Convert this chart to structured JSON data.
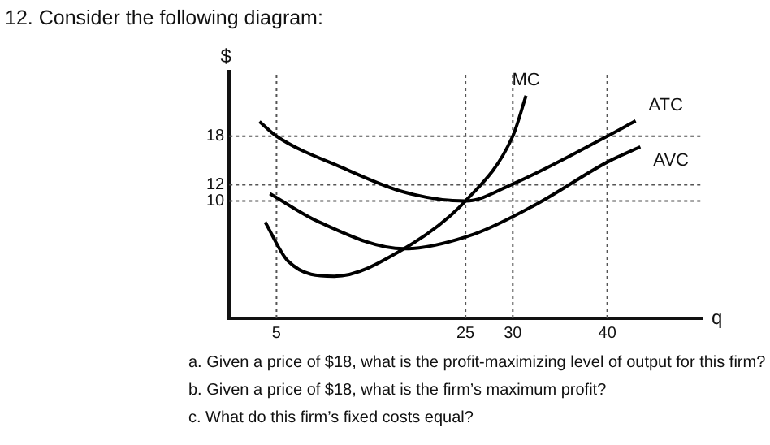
{
  "chart_data": {
    "type": "line",
    "title": "12. Consider the following diagram:",
    "xlabel": "q",
    "ylabel": "$",
    "xlim": [
      0,
      50
    ],
    "ylim": [
      -4.5,
      26
    ],
    "xticks": [
      5,
      25,
      30,
      40
    ],
    "yticks": [
      10,
      12,
      18
    ],
    "grid": false,
    "legend": false,
    "marker": "none",
    "line_style": "solid",
    "series": [
      {
        "name": "MC",
        "color": "#000000",
        "x": [
          3.8,
          6.2,
          11.1,
          18.5,
          25,
          30,
          31.4
        ],
        "values": [
          7.4,
          2.6,
          0.7,
          4.1,
          10,
          18,
          23
        ]
      },
      {
        "name": "ATC",
        "color": "#000000",
        "x": [
          3.2,
          5,
          12,
          18.5,
          25,
          30,
          40,
          43
        ],
        "values": [
          19.8,
          18,
          14.1,
          11.1,
          10,
          12.1,
          18,
          19.9
        ]
      },
      {
        "name": "AVC",
        "color": "#000000",
        "x": [
          4.3,
          9.5,
          18.5,
          25.9,
          32.5,
          40,
          43.5
        ],
        "values": [
          10.9,
          7.4,
          4.1,
          5.9,
          9.6,
          14.8,
          16.7
        ]
      }
    ],
    "ref_lines": [
      {
        "axis": "x",
        "value": 5,
        "line_style": "dotted"
      },
      {
        "axis": "x",
        "value": 25,
        "line_style": "dotted"
      },
      {
        "axis": "x",
        "value": 30,
        "line_style": "dotted"
      },
      {
        "axis": "x",
        "value": 40,
        "line_style": "dotted"
      },
      {
        "axis": "y",
        "value": 10,
        "line_style": "dotted"
      },
      {
        "axis": "y",
        "value": 12,
        "line_style": "dotted"
      },
      {
        "axis": "y",
        "value": 18,
        "line_style": "dotted"
      }
    ],
    "annotations": [
      "a.  Given a price of $18, what is the profit-maximizing level of output for this firm?",
      "b.  Given a price of $18, what is the firm’s maximum profit?",
      "c.  What do this firm’s fixed costs equal?"
    ]
  }
}
